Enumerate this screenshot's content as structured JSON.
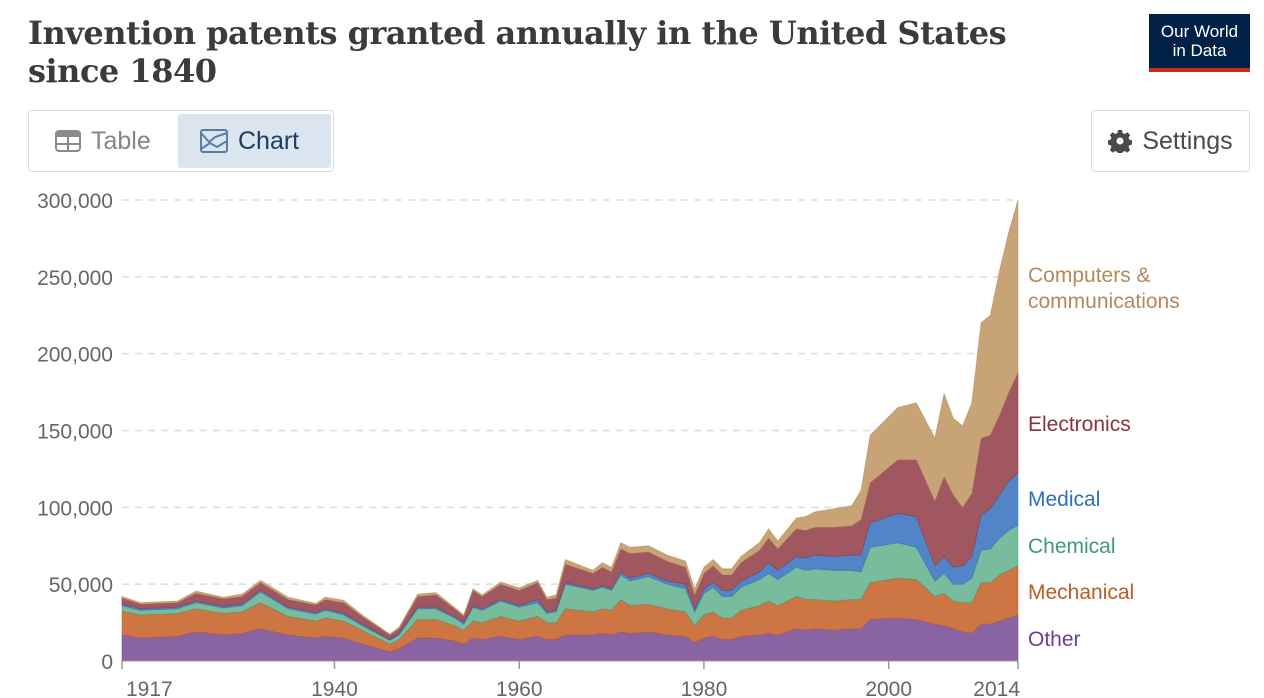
{
  "title": "Invention patents granted annually in the United States since 1840",
  "logo": {
    "line1": "Our World",
    "line2": "in Data"
  },
  "controls": {
    "table_label": "Table",
    "chart_label": "Chart",
    "settings_label": "Settings"
  },
  "colors": {
    "Other": "#8a63a3",
    "Mechanical": "#cd7543",
    "Chemical": "#77bc9d",
    "Medical": "#5185c8",
    "Electronics": "#a0575f",
    "Computers & communications": "#c8a376"
  },
  "label_colors": {
    "Other": "#6d3e91",
    "Mechanical": "#c05a28",
    "Chemical": "#3f9a72",
    "Medical": "#2f6fbd",
    "Electronics": "#8a3240",
    "Computers & communications": "#b4885b"
  },
  "chart_data": {
    "type": "area",
    "stacked": true,
    "title": "Invention patents granted annually in the United States since 1840",
    "xlabel": "",
    "ylabel": "",
    "xlim": [
      1917,
      2014
    ],
    "ylim": [
      0,
      300000
    ],
    "y_ticks": [
      0,
      50000,
      100000,
      150000,
      200000,
      250000,
      300000
    ],
    "y_tick_labels": [
      "0",
      "50,000",
      "100,000",
      "150,000",
      "200,000",
      "250,000",
      "300,000"
    ],
    "x_ticks": [
      1917,
      1940,
      1960,
      1980,
      2000,
      2014
    ],
    "x_tick_labels": [
      "1917",
      "1940",
      "1960",
      "1980",
      "2000",
      "2014"
    ],
    "grid": "horizontal dashed",
    "legend": "right (inline labels)",
    "x": [
      1917,
      1919,
      1923,
      1925,
      1928,
      1930,
      1932,
      1935,
      1938,
      1939,
      1941,
      1943,
      1946,
      1947,
      1949,
      1951,
      1953,
      1954,
      1955,
      1956,
      1958,
      1960,
      1962,
      1963,
      1964,
      1965,
      1968,
      1969,
      1970,
      1971,
      1972,
      1974,
      1976,
      1978,
      1979,
      1980,
      1981,
      1982,
      1983,
      1984,
      1986,
      1987,
      1988,
      1990,
      1991,
      1992,
      1994,
      1996,
      1997,
      1998,
      2001,
      2003,
      2005,
      2006,
      2007,
      2008,
      2009,
      2010,
      2011,
      2012,
      2013,
      2014
    ],
    "series": [
      {
        "name": "Other",
        "values": [
          17000,
          15000,
          16000,
          19000,
          17000,
          18000,
          21000,
          17000,
          15000,
          16000,
          15000,
          11000,
          6000,
          8000,
          15000,
          15000,
          13000,
          11000,
          15000,
          14000,
          16000,
          14000,
          16000,
          14000,
          14000,
          17000,
          17000,
          18000,
          17000,
          19000,
          18000,
          19000,
          17000,
          16000,
          12000,
          15000,
          16000,
          14000,
          14000,
          16000,
          17000,
          18000,
          17000,
          21000,
          20000,
          21000,
          20000,
          21000,
          21000,
          27000,
          28000,
          27000,
          24000,
          23000,
          21000,
          19000,
          18000,
          24000,
          24000,
          26000,
          28000,
          30000
        ]
      },
      {
        "name": "Mechanical",
        "values": [
          15500,
          15000,
          15000,
          15000,
          14000,
          14000,
          17000,
          12000,
          11000,
          12000,
          11000,
          9000,
          5000,
          6000,
          12000,
          12000,
          10000,
          9000,
          11000,
          11000,
          13000,
          12000,
          13000,
          11000,
          11000,
          17000,
          15000,
          16000,
          16000,
          21000,
          18000,
          18000,
          17000,
          16000,
          11000,
          15000,
          16000,
          14000,
          14000,
          17000,
          19000,
          21000,
          19000,
          21000,
          20000,
          19000,
          19000,
          19000,
          19000,
          24000,
          26000,
          26000,
          18000,
          21000,
          18000,
          19000,
          20000,
          27000,
          27000,
          30000,
          31000,
          32000
        ]
      },
      {
        "name": "Chemical",
        "values": [
          3500,
          3000,
          3000,
          4000,
          3500,
          4000,
          7000,
          5000,
          4500,
          5000,
          4000,
          3000,
          2500,
          3000,
          7000,
          7000,
          5000,
          4000,
          9000,
          8000,
          10000,
          9000,
          9000,
          6000,
          7000,
          16000,
          14000,
          14000,
          13000,
          16000,
          16000,
          18000,
          16000,
          15000,
          9000,
          14000,
          16000,
          14000,
          14000,
          15000,
          17000,
          18000,
          17000,
          19000,
          19000,
          20000,
          20000,
          19000,
          18000,
          23000,
          23000,
          21000,
          10000,
          13000,
          11000,
          12000,
          16000,
          21000,
          22000,
          24000,
          26000,
          26500
        ]
      },
      {
        "name": "Medical",
        "values": [
          1000,
          1000,
          1000,
          1000,
          1000,
          1000,
          1000,
          1000,
          1000,
          1000,
          1000,
          1000,
          500,
          1000,
          1000,
          1000,
          1000,
          1000,
          1000,
          1000,
          1000,
          1000,
          2000,
          1000,
          1000,
          1000,
          1000,
          1000,
          1000,
          2000,
          2000,
          2000,
          2000,
          3000,
          2000,
          3000,
          3000,
          4000,
          4000,
          4000,
          5000,
          7000,
          6000,
          7000,
          8000,
          9000,
          9000,
          10000,
          11000,
          16000,
          19000,
          20000,
          10000,
          11000,
          11000,
          12000,
          14000,
          23000,
          26000,
          28000,
          32000,
          34000
        ]
      },
      {
        "name": "Electronics",
        "values": [
          4000,
          3000,
          3000,
          5000,
          5000,
          5000,
          5000,
          5000,
          5000,
          6000,
          7000,
          5000,
          3000,
          3000,
          7000,
          8000,
          5000,
          4000,
          10000,
          8000,
          10000,
          10000,
          11000,
          8000,
          8000,
          12000,
          10000,
          12000,
          11000,
          15000,
          16000,
          14000,
          13000,
          11000,
          9000,
          10000,
          11000,
          10000,
          10000,
          12000,
          14000,
          16000,
          14000,
          18000,
          18000,
          18000,
          19000,
          19000,
          23000,
          26000,
          35000,
          37000,
          42000,
          52000,
          47000,
          38000,
          41000,
          50000,
          48000,
          52000,
          58000,
          65000
        ]
      },
      {
        "name": "Computers & communications",
        "values": [
          1000,
          1000,
          1000,
          1500,
          1000,
          1500,
          1500,
          1500,
          1000,
          1500,
          1500,
          1000,
          500,
          1000,
          1500,
          1500,
          1000,
          1000,
          1000,
          1000,
          1500,
          1500,
          1500,
          1500,
          2000,
          3000,
          2000,
          3000,
          3000,
          4000,
          4000,
          4000,
          4000,
          4000,
          4000,
          4000,
          4000,
          4000,
          4000,
          4000,
          5000,
          6000,
          5000,
          7000,
          9000,
          10000,
          12000,
          13000,
          19000,
          31000,
          34000,
          37000,
          41000,
          54000,
          50000,
          53000,
          59000,
          75000,
          78000,
          94000,
          104000,
          112500
        ]
      }
    ]
  }
}
